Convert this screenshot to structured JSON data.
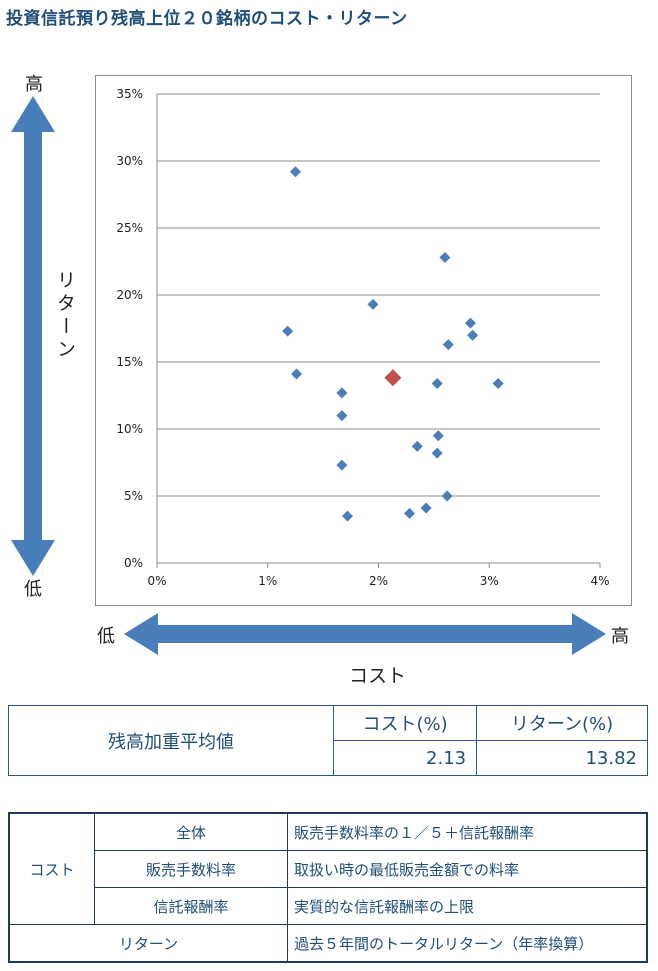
{
  "title": "投資信託預り残高上位２０銘柄のコスト・リターン",
  "y_arrow": {
    "top": "高",
    "bottom": "低",
    "label": "リターン"
  },
  "x_arrow": {
    "left": "低",
    "right": "高",
    "label": "コスト"
  },
  "colors": {
    "point": "#4a7ebb",
    "average_point": "#c0504d",
    "arrow": "#4a7ebb",
    "border": "#2f5597"
  },
  "chart_data": {
    "type": "scatter",
    "title": "",
    "xlabel": "コスト",
    "ylabel": "リターン",
    "xlim": [
      0,
      4
    ],
    "ylim": [
      0,
      35
    ],
    "x_ticks": [
      "0%",
      "1%",
      "2%",
      "3%",
      "4%"
    ],
    "y_ticks": [
      "0%",
      "5%",
      "10%",
      "15%",
      "20%",
      "25%",
      "30%",
      "35%"
    ],
    "grid": "horizontal",
    "series": [
      {
        "points": [
          {
            "x": 1.25,
            "y": 29.2
          },
          {
            "x": 2.6,
            "y": 22.8
          },
          {
            "x": 1.95,
            "y": 19.3
          },
          {
            "x": 2.83,
            "y": 17.9
          },
          {
            "x": 1.18,
            "y": 17.3
          },
          {
            "x": 2.85,
            "y": 17.0
          },
          {
            "x": 2.63,
            "y": 16.3
          },
          {
            "x": 1.26,
            "y": 14.1
          },
          {
            "x": 2.53,
            "y": 13.4
          },
          {
            "x": 3.08,
            "y": 13.4
          },
          {
            "x": 1.67,
            "y": 12.7
          },
          {
            "x": 1.67,
            "y": 11.0
          },
          {
            "x": 2.54,
            "y": 9.5
          },
          {
            "x": 2.35,
            "y": 8.7
          },
          {
            "x": 2.53,
            "y": 8.2
          },
          {
            "x": 1.67,
            "y": 7.3
          },
          {
            "x": 2.62,
            "y": 5.0
          },
          {
            "x": 2.43,
            "y": 4.1
          },
          {
            "x": 2.28,
            "y": 3.7
          },
          {
            "x": 1.72,
            "y": 3.5
          }
        ]
      },
      {
        "points": [
          {
            "x": 2.13,
            "y": 13.82
          }
        ]
      }
    ]
  },
  "summary": {
    "row_label": "残高加重平均値",
    "cost_header": "コスト(%)",
    "return_header": "リターン(%)",
    "cost_value": "2.13",
    "return_value": "13.82"
  },
  "legend": {
    "cost_label": "コスト",
    "rows": [
      {
        "term": "全体",
        "desc": "販売手数料率の１／５＋信託報酬率"
      },
      {
        "term": "販売手数料率",
        "desc": "取扱い時の最低販売金額での料率"
      },
      {
        "term": "信託報酬率",
        "desc": "実質的な信託報酬率の上限"
      }
    ],
    "return_label": "リターン",
    "return_desc": "過去５年間のトータルリターン（年率換算）"
  }
}
